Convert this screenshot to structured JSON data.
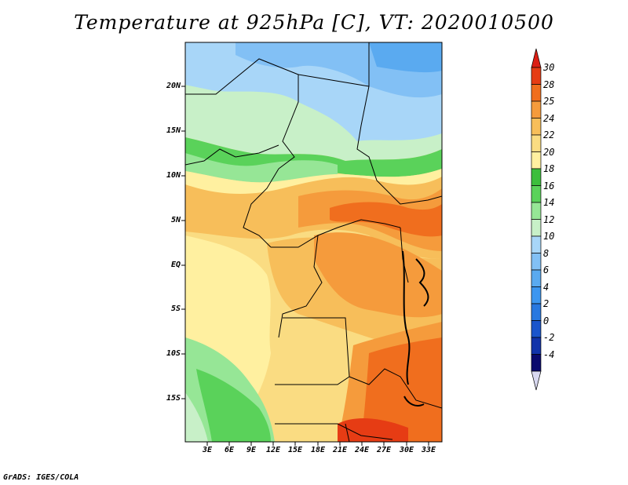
{
  "title": "Temperature at 925hPa [C], VT: 2020010500",
  "credit": "GrADS: IGES/COLA",
  "map": {
    "lat_labels": [
      "20N",
      "15N",
      "10N",
      "5N",
      "EQ",
      "5S",
      "10S",
      "15S"
    ],
    "lon_labels": [
      "3E",
      "6E",
      "9E",
      "12E",
      "15E",
      "18E",
      "21E",
      "24E",
      "27E",
      "30E",
      "33E"
    ],
    "palette": {
      "c_m4": "#0a0a6e",
      "c_m2": "#1133aa",
      "c0": "#1a55cc",
      "c2": "#2878e0",
      "c4": "#3c96f0",
      "c6": "#5aaaf0",
      "c8": "#82c0f5",
      "c10": "#a8d6f8",
      "c12": "#c8f0c8",
      "c14": "#96e696",
      "c16": "#5ad25a",
      "c18": "#3cbe3c",
      "c20": "#fff0a0",
      "c22": "#fadc82",
      "c24": "#f7be5a",
      "c25": "#f59b3c",
      "c28": "#f06e1e",
      "c30": "#e63c14"
    }
  },
  "colorbar": {
    "labels": [
      "30",
      "28",
      "25",
      "24",
      "22",
      "20",
      "18",
      "16",
      "14",
      "12",
      "10",
      "8",
      "6",
      "4",
      "2",
      "0",
      "-2",
      "-4"
    ],
    "colors": [
      "#e63c14",
      "#f06e1e",
      "#f59b3c",
      "#f7be5a",
      "#fadc82",
      "#fff0a0",
      "#3cbe3c",
      "#5ad25a",
      "#96e696",
      "#c8f0c8",
      "#a8d6f8",
      "#82c0f5",
      "#5aaaf0",
      "#3c96f0",
      "#2878e0",
      "#1a55cc",
      "#1133aa",
      "#0a0a6e"
    ],
    "top_arrow_color": "#dc1e14",
    "bottom_arrow_color": "#d8d8f0"
  }
}
